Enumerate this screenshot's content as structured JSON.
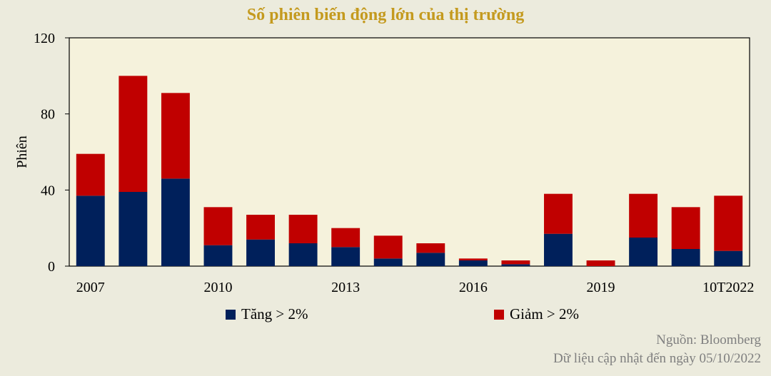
{
  "chart_data": {
    "type": "bar",
    "stacked": true,
    "title": "Số phiên biến động lớn của thị trường",
    "ylabel": "Phiên",
    "ylim": [
      0,
      120
    ],
    "yticks": [
      0,
      40,
      80,
      120
    ],
    "categories": [
      "2007",
      "2008",
      "2009",
      "2010",
      "2011",
      "2012",
      "2013",
      "2014",
      "2015",
      "2016",
      "2017",
      "2018",
      "2019",
      "2020",
      "2021",
      "10T2022"
    ],
    "xtick_labels": [
      "2007",
      "",
      "",
      "2010",
      "",
      "",
      "2013",
      "",
      "",
      "2016",
      "",
      "",
      "2019",
      "",
      "",
      "10T2022"
    ],
    "series": [
      {
        "name": "Tăng > 2%",
        "color": "#00205b",
        "values": [
          37,
          39,
          46,
          11,
          14,
          12,
          10,
          4,
          7,
          3,
          1,
          17,
          0,
          15,
          9,
          8
        ]
      },
      {
        "name": "Giảm > 2%",
        "color": "#c00000",
        "values": [
          22,
          61,
          45,
          20,
          13,
          15,
          10,
          12,
          5,
          1,
          2,
          21,
          3,
          23,
          22,
          29
        ]
      }
    ],
    "plot_background": "#f5f2dc",
    "grid": false,
    "legend_position": "bottom"
  },
  "source": {
    "line1": "Nguồn: Bloomberg",
    "line2": "Dữ liệu cập nhật đến ngày 05/10/2022"
  }
}
